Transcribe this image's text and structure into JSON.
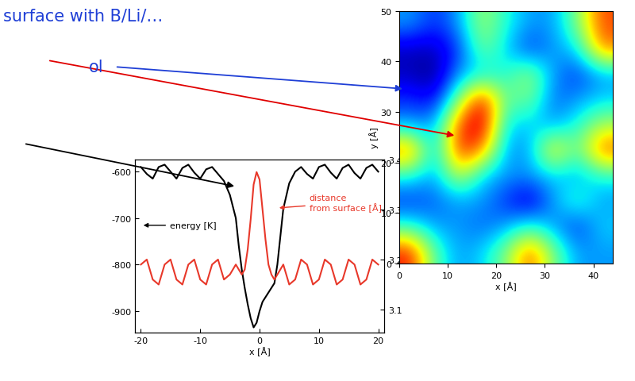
{
  "header": {
    "text": "surface with B/Li/…"
  },
  "labels": [
    "ol"
  ],
  "chart_data": [
    {
      "type": "line",
      "x_label": "x [Å]",
      "x": [
        -20,
        -19,
        -18,
        -17,
        -16,
        -15,
        -14,
        -13,
        -12,
        -11,
        -10,
        -9,
        -8,
        -7,
        -6,
        -5,
        -4,
        -3.5,
        -3,
        -2.5,
        -2,
        -1.5,
        -1,
        -0.5,
        0,
        0.5,
        1,
        1.5,
        2,
        2.5,
        3,
        3.5,
        4,
        5,
        6,
        7,
        8,
        9,
        10,
        11,
        12,
        13,
        14,
        15,
        16,
        17,
        18,
        19,
        20
      ],
      "xlim": [
        -21,
        21
      ],
      "xticks": [
        -20,
        -10,
        0,
        10,
        20
      ],
      "ylim": [
        -946,
        -574
      ],
      "yticks": [
        -900,
        -800,
        -700,
        -600
      ],
      "y2lim": [
        3.054,
        3.4
      ],
      "y2ticks": [
        3.1,
        3.2,
        3.3,
        3.4
      ],
      "series": [
        {
          "name": "energy [K]",
          "color": "#000000",
          "values": [
            -590,
            -605,
            -615,
            -590,
            -585,
            -600,
            -615,
            -592,
            -585,
            -602,
            -615,
            -595,
            -590,
            -605,
            -620,
            -650,
            -700,
            -760,
            -810,
            -850,
            -885,
            -915,
            -935,
            -925,
            -900,
            -880,
            -870,
            -860,
            -850,
            -840,
            -800,
            -740,
            -680,
            -625,
            -600,
            -590,
            -605,
            -615,
            -590,
            -585,
            -602,
            -615,
            -592,
            -585,
            -603,
            -615,
            -592,
            -585,
            -600
          ]
        },
        {
          "name": "distance\nfrom surface [Å]",
          "color": "#e8382a",
          "axis": "y2",
          "values": [
            3.19,
            3.2,
            3.16,
            3.15,
            3.19,
            3.2,
            3.16,
            3.15,
            3.19,
            3.2,
            3.16,
            3.15,
            3.19,
            3.2,
            3.16,
            3.17,
            3.19,
            3.18,
            3.17,
            3.18,
            3.22,
            3.28,
            3.35,
            3.375,
            3.36,
            3.3,
            3.24,
            3.19,
            3.17,
            3.16,
            3.17,
            3.18,
            3.19,
            3.15,
            3.16,
            3.2,
            3.19,
            3.15,
            3.16,
            3.2,
            3.19,
            3.15,
            3.16,
            3.2,
            3.19,
            3.15,
            3.16,
            3.2,
            3.19
          ]
        }
      ]
    },
    {
      "type": "heatmap",
      "x_label": "x [Å]",
      "y_label": "y [Å]",
      "xlim": [
        0,
        44
      ],
      "ylim": [
        0,
        50
      ],
      "xticks": [
        0,
        10,
        20,
        30,
        40
      ],
      "yticks": [
        0,
        10,
        20,
        30,
        40,
        50
      ],
      "cells": [
        [
          0.85,
          0.45,
          0.3,
          0.35,
          0.5,
          0.8,
          0.5,
          0.3,
          0.3
        ],
        [
          0.4,
          0.3,
          0.3,
          0.25,
          0.3,
          0.4,
          0.3,
          0.2,
          0.35
        ],
        [
          0.2,
          0.25,
          0.3,
          0.3,
          0.2,
          0.1,
          0.3,
          0.45,
          0.3
        ],
        [
          0.4,
          0.3,
          0.6,
          0.35,
          0.3,
          0.3,
          0.35,
          0.3,
          0.4
        ],
        [
          0.8,
          0.3,
          0.85,
          0.75,
          0.3,
          0.3,
          0.7,
          0.45,
          0.8
        ],
        [
          0.3,
          0.3,
          0.8,
          0.95,
          0.35,
          0.35,
          0.3,
          0.4,
          0.55
        ],
        [
          0.2,
          0.15,
          0.5,
          0.9,
          0.45,
          0.5,
          0.25,
          0.3,
          0.35
        ],
        [
          0.1,
          0.05,
          0.3,
          0.35,
          0.4,
          0.55,
          0.3,
          0.2,
          0.3
        ],
        [
          0.1,
          0.1,
          0.2,
          0.5,
          0.35,
          0.2,
          0.3,
          0.35,
          0.75
        ],
        [
          0.3,
          0.2,
          0.3,
          0.55,
          0.4,
          0.3,
          0.3,
          0.5,
          0.8
        ]
      ]
    }
  ]
}
